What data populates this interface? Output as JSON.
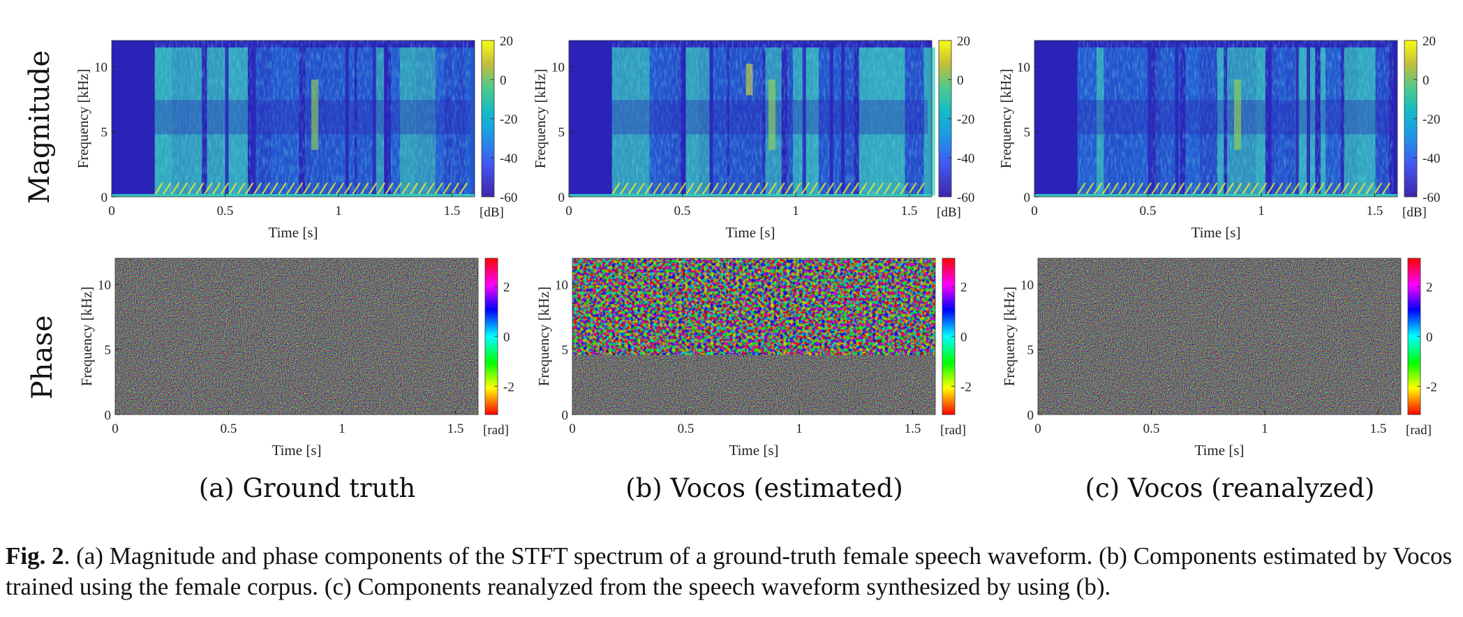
{
  "row_labels": [
    "Magnitude",
    "Phase"
  ],
  "panels": [
    {
      "subcaption": "(a) Ground truth"
    },
    {
      "subcaption": "(b) Vocos (estimated)"
    },
    {
      "subcaption": "(c) Vocos (reanalyzed)"
    }
  ],
  "axes": {
    "xlabel": "Time [s]",
    "ylabel": "Frequency [kHz]",
    "x_ticks": [
      "0",
      "0.5",
      "1",
      "1.5"
    ],
    "y_ticks": [
      "0",
      "5",
      "10"
    ]
  },
  "magnitude_colorbar": {
    "unit": "[dB]",
    "ticks": [
      "20",
      "0",
      "-20",
      "-40",
      "-60"
    ],
    "range": [
      -60,
      20
    ]
  },
  "phase_colorbar": {
    "unit": "[rad]",
    "ticks": [
      "2",
      "0",
      "-2"
    ],
    "range": [
      -3.14,
      3.14
    ]
  },
  "caption": {
    "fig_label": "Fig. 2",
    "text": ". (a) Magnitude and phase components of the STFT spectrum of a ground-truth female speech waveform. (b) Components estimated by Vocos trained using the female corpus. (c) Components reanalyzed from the speech waveform synthesized by using (b)."
  },
  "colors": {
    "spec_background": "#2a23b8",
    "spec_mid": "#1f7fe0",
    "spec_high": "#36d0c0",
    "spec_peak": "#e8e830"
  }
}
